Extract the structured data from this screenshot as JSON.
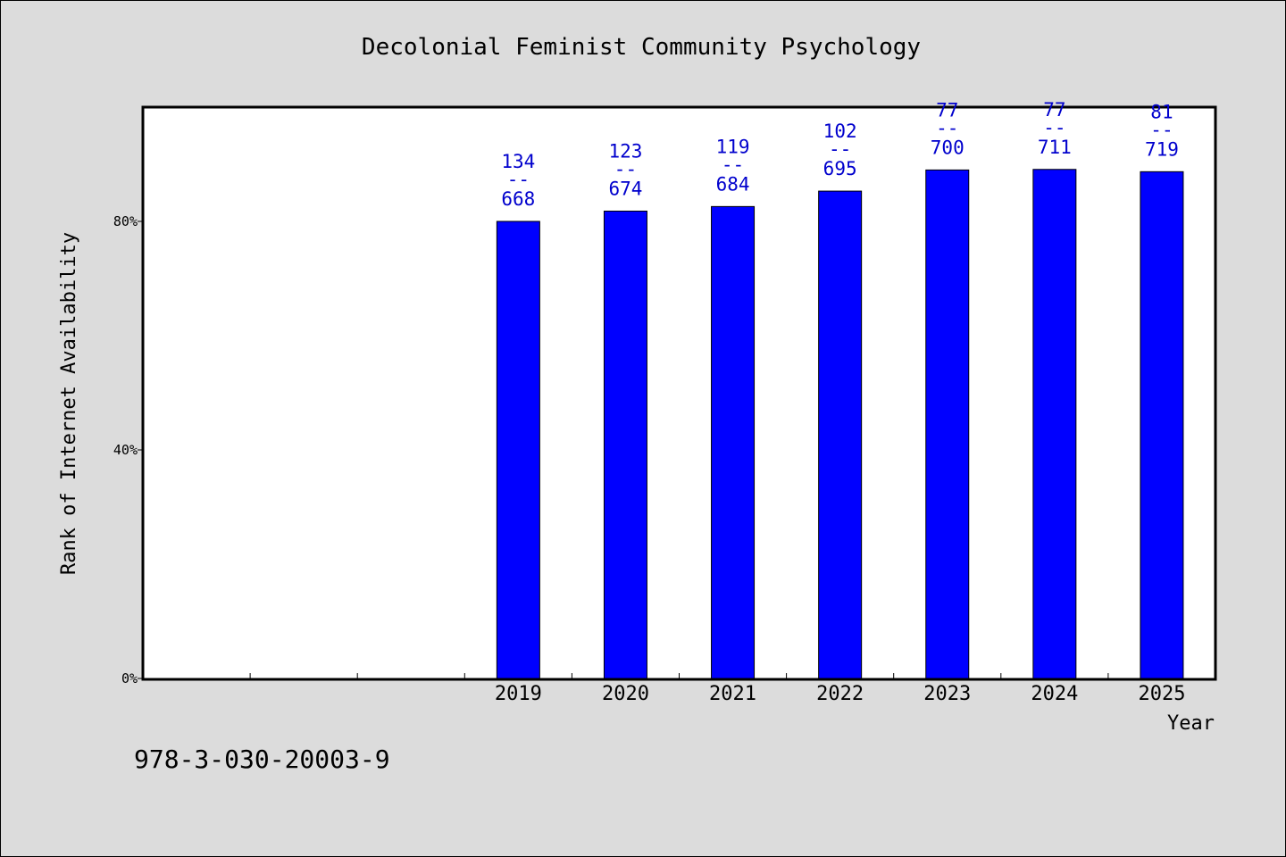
{
  "chart_data": {
    "type": "bar",
    "title": "Decolonial Feminist Community Psychology",
    "xlabel": "Year",
    "ylabel": "Rank of Internet Availability",
    "categories": [
      "",
      "",
      "",
      "2019",
      "2020",
      "2021",
      "2022",
      "2023",
      "2024",
      "2025"
    ],
    "values": [
      null,
      null,
      null,
      0.8,
      0.818,
      0.826,
      0.853,
      0.89,
      0.891,
      0.887
    ],
    "data_labels": [
      null,
      null,
      null,
      {
        "top": "134",
        "mid": "--",
        "bottom": "668"
      },
      {
        "top": "123",
        "mid": "--",
        "bottom": "674"
      },
      {
        "top": "119",
        "mid": "--",
        "bottom": "684"
      },
      {
        "top": "102",
        "mid": "--",
        "bottom": "695"
      },
      {
        "top": "77",
        "mid": "--",
        "bottom": "700"
      },
      {
        "top": "77",
        "mid": "--",
        "bottom": "711"
      },
      {
        "top": "81",
        "mid": "--",
        "bottom": "719"
      }
    ],
    "ylim": [
      0,
      1.0
    ],
    "yticks": [
      0,
      0.4,
      0.8
    ],
    "ytick_labels": [
      "0%",
      "40%",
      "80%"
    ],
    "grid": false,
    "colors": {
      "bar": "#0000ff",
      "data_label": "#0000cd",
      "background": "#dcdcdc",
      "plot_background": "#ffffff"
    }
  },
  "footer": {
    "isbn": "978-3-030-20003-9"
  }
}
